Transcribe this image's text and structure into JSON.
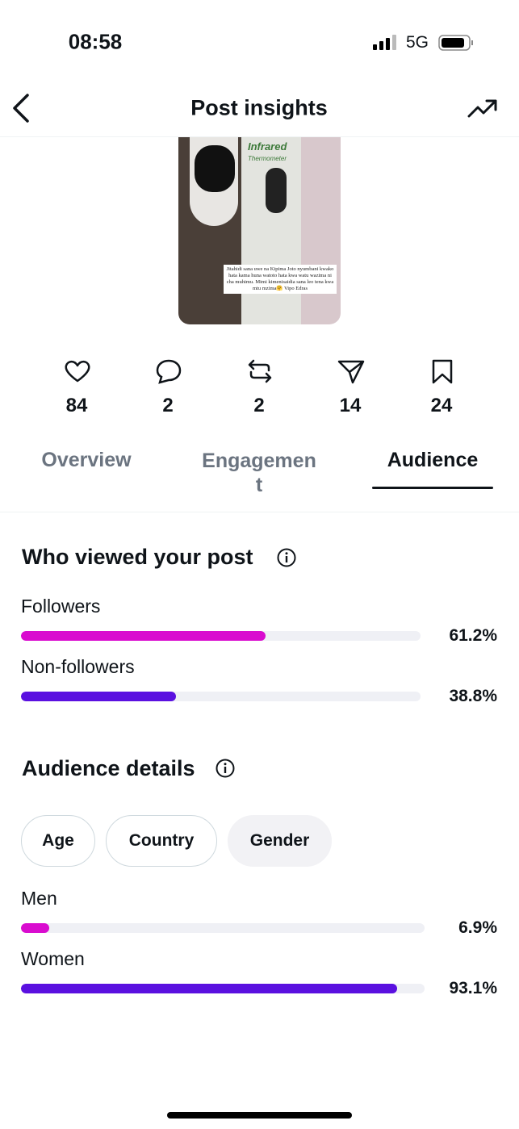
{
  "status_bar": {
    "time": "08:58",
    "network": "5G"
  },
  "header": {
    "title": "Post insights"
  },
  "post_image": {
    "brand": "Infrared",
    "product": "Thermometer",
    "caption": "Jitahidi sana uwe na Kipima Joto nyumbani kwako hata kama huna watoto hata kwa watu wazima ni cha muhimu. Mimi kimenisaidia sana leo tena kwa mtu mzima🤗 Vipo Edras"
  },
  "stats": {
    "likes": "84",
    "replies": "2",
    "reposts": "2",
    "shares": "14",
    "bookmarks": "24"
  },
  "tabs": [
    "Overview",
    "Engagement",
    "Audience"
  ],
  "viewers": {
    "title": "Who viewed your post",
    "rows": [
      {
        "label": "Followers",
        "value": 61.2,
        "value_label": "61.2%",
        "color": "#d90ccf"
      },
      {
        "label": "Non-followers",
        "value": 38.8,
        "value_label": "38.8%",
        "color": "#5a10e0"
      }
    ]
  },
  "audience_details": {
    "title": "Audience details",
    "filters": [
      "Age",
      "Country",
      "Gender"
    ],
    "rows": [
      {
        "label": "Men",
        "value": 6.9,
        "value_label": "6.9%",
        "color": "#d90ccf"
      },
      {
        "label": "Women",
        "value": 93.1,
        "value_label": "93.1%",
        "color": "#5a10e0"
      }
    ]
  }
}
